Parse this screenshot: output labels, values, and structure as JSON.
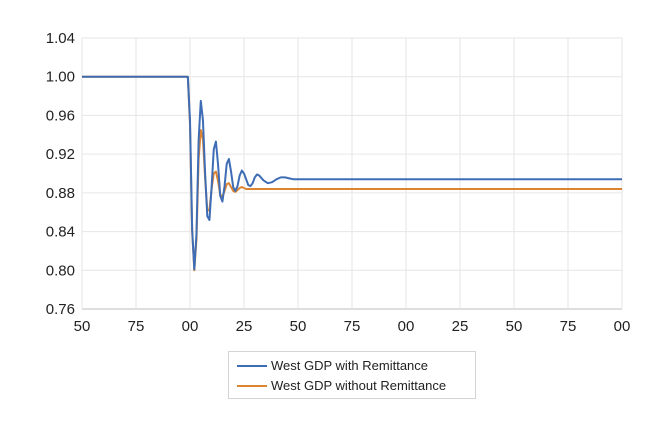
{
  "chart_data": {
    "type": "line",
    "xlabel": "",
    "ylabel": "",
    "x_tick_labels": [
      "50",
      "75",
      "00",
      "25",
      "50",
      "75",
      "00",
      "25",
      "50",
      "75",
      "00"
    ],
    "y_tick_labels": [
      "1.04",
      "1.00",
      "0.96",
      "0.92",
      "0.88",
      "0.84",
      "0.80",
      "0.76"
    ],
    "ylim": [
      0.76,
      1.04
    ],
    "grid": true,
    "legend_position": "bottom",
    "x": [
      0,
      49,
      50,
      51,
      52,
      53,
      54,
      55,
      56,
      57,
      58,
      59,
      60,
      61,
      62,
      63,
      64,
      65,
      66,
      67,
      68,
      69,
      70,
      71,
      72,
      73,
      74,
      75,
      76,
      77,
      78,
      79,
      80,
      81,
      82,
      84,
      86,
      88,
      90,
      92,
      94,
      96,
      98,
      100,
      105,
      110,
      115,
      120,
      125,
      130,
      140,
      150,
      160,
      170,
      180,
      190,
      200,
      210,
      220,
      230,
      240,
      250
    ],
    "series": [
      {
        "name": "West GDP with Remittance",
        "color": "#3e6db5",
        "values": [
          1.0,
          1.0,
          0.955,
          0.842,
          0.801,
          0.838,
          0.935,
          0.975,
          0.955,
          0.9,
          0.856,
          0.852,
          0.886,
          0.925,
          0.933,
          0.909,
          0.877,
          0.871,
          0.887,
          0.91,
          0.915,
          0.902,
          0.886,
          0.882,
          0.887,
          0.898,
          0.903,
          0.9,
          0.894,
          0.888,
          0.887,
          0.89,
          0.896,
          0.899,
          0.898,
          0.893,
          0.89,
          0.891,
          0.894,
          0.896,
          0.896,
          0.895,
          0.894,
          0.894,
          0.894,
          0.894,
          0.894,
          0.894,
          0.894,
          0.894,
          0.894,
          0.894,
          0.894,
          0.894,
          0.894,
          0.894,
          0.894,
          0.894,
          0.894,
          0.894,
          0.894,
          0.894
        ]
      },
      {
        "name": "West GDP without Remittance",
        "color": "#dd8432",
        "values": [
          1.0,
          1.0,
          0.95,
          0.84,
          0.8,
          0.832,
          0.915,
          0.945,
          0.935,
          0.895,
          0.862,
          0.862,
          0.884,
          0.9,
          0.902,
          0.892,
          0.878,
          0.876,
          0.882,
          0.889,
          0.89,
          0.886,
          0.882,
          0.881,
          0.883,
          0.885,
          0.886,
          0.885,
          0.884,
          0.884,
          0.884,
          0.884,
          0.884,
          0.884,
          0.884,
          0.884,
          0.884,
          0.884,
          0.884,
          0.884,
          0.884,
          0.884,
          0.884,
          0.884,
          0.884,
          0.884,
          0.884,
          0.884,
          0.884,
          0.884,
          0.884,
          0.884,
          0.884,
          0.884,
          0.884,
          0.884,
          0.884,
          0.884,
          0.884,
          0.884,
          0.884,
          0.884
        ]
      }
    ]
  }
}
